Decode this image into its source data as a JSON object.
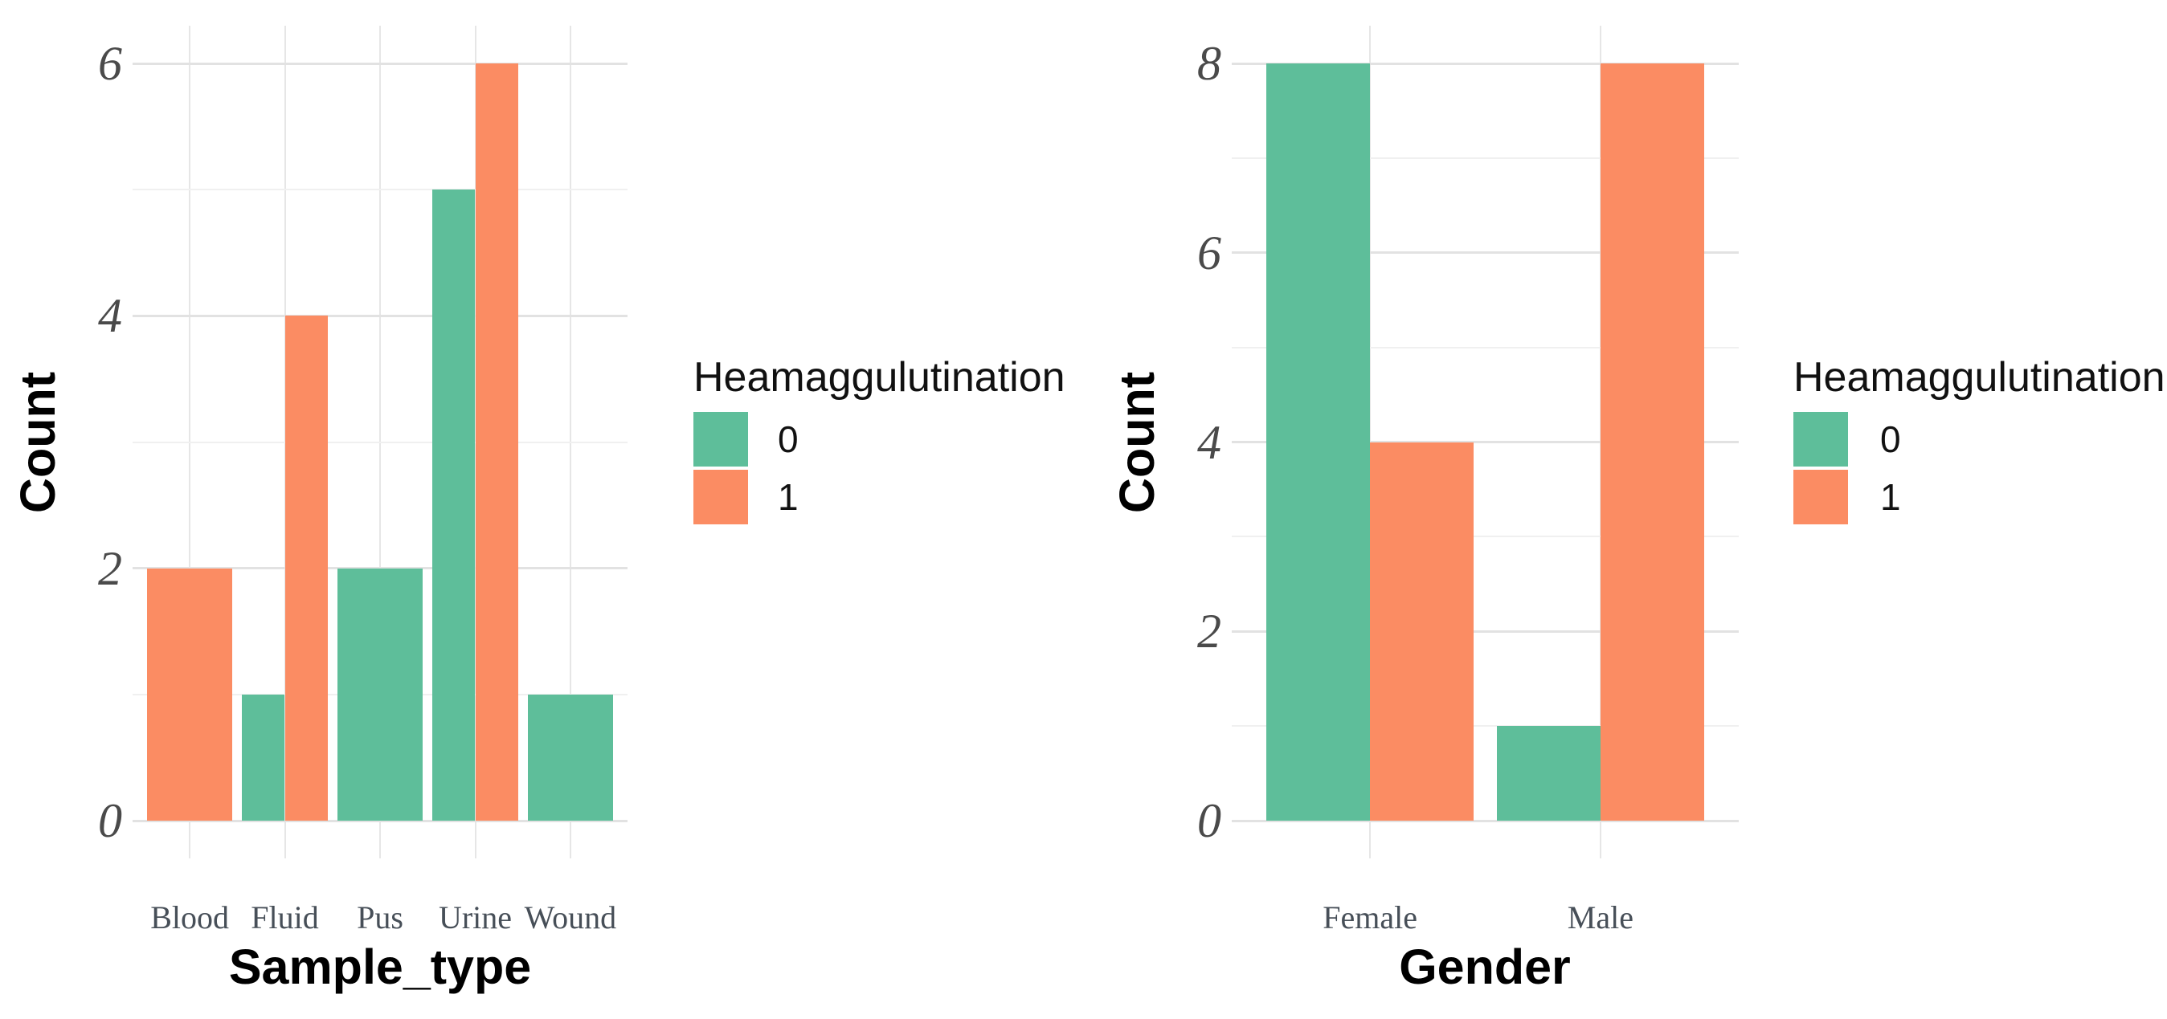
{
  "page": {
    "background": "#ffffff"
  },
  "palette": {
    "series_0_green": "#5EBE9A",
    "series_1_orange": "#FB8C63",
    "grid_major": "#e2e2e2",
    "grid_minor": "#f0f0f0",
    "grid_vertical": "#e6e6e6",
    "y_tick_text": "#4a4a4a",
    "x_tick_text": "#474f58",
    "title_text": "#000000",
    "legend_text": "#111111"
  },
  "legend": {
    "title": "Heamaggulutination",
    "items": [
      {
        "label": "0",
        "color": "#5EBE9A"
      },
      {
        "label": "1",
        "color": "#FB8C63"
      }
    ]
  },
  "chart_data": [
    {
      "type": "bar",
      "bar_mode": "dodge",
      "title": "",
      "xlabel": "Sample_type",
      "ylabel": "Count",
      "categories": [
        "Blood",
        "Fluid",
        "Pus",
        "Urine",
        "Wound"
      ],
      "series": [
        {
          "name": "0",
          "color": "#5EBE9A",
          "values": [
            null,
            1,
            2,
            5,
            1
          ]
        },
        {
          "name": "1",
          "color": "#FB8C63",
          "values": [
            2,
            4,
            null,
            6,
            null
          ]
        }
      ],
      "yticks": [
        0,
        2,
        4,
        6
      ],
      "ylim": [
        0,
        6
      ],
      "grid": "major+minor",
      "legend_title": "Heamaggulutination",
      "legend_position": "right"
    },
    {
      "type": "bar",
      "bar_mode": "dodge",
      "title": "",
      "xlabel": "Gender",
      "ylabel": "Count",
      "categories": [
        "Female",
        "Male"
      ],
      "series": [
        {
          "name": "0",
          "color": "#5EBE9A",
          "values": [
            8,
            1
          ]
        },
        {
          "name": "1",
          "color": "#FB8C63",
          "values": [
            4,
            8
          ]
        }
      ],
      "yticks": [
        0,
        2,
        4,
        6,
        8
      ],
      "ylim": [
        0,
        8
      ],
      "grid": "major+minor",
      "legend_title": "Heamaggulutination",
      "legend_position": "right"
    }
  ]
}
